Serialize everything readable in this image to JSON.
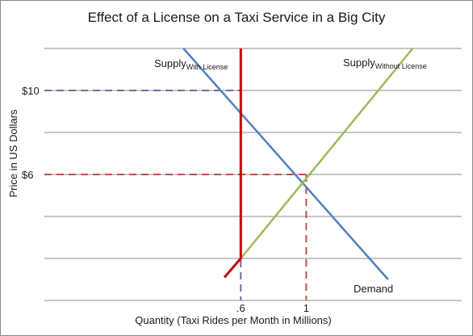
{
  "chart_data": {
    "type": "line",
    "title": "Effect of a License on a Taxi Service in  a Big City",
    "xlabel": "Quantity (Taxi Rides per Month in Millions)",
    "ylabel": "Price in US Dollars",
    "x_ticks": [
      {
        "value": 0.6,
        "label": ".6"
      },
      {
        "value": 1.0,
        "label": "1"
      }
    ],
    "y_ticks": [
      {
        "value": 10,
        "label": "$10"
      },
      {
        "value": 6,
        "label": "$6"
      }
    ],
    "xlim": [
      -0.6,
      1.95
    ],
    "ylim": [
      0,
      14
    ],
    "grid": "horizontal",
    "series": [
      {
        "name": "Demand",
        "color": "#4f81bd",
        "x": [
          0.25,
          1.5
        ],
        "y": [
          12.0,
          1.0
        ]
      },
      {
        "name": "Supply",
        "name_sub": "Without License",
        "color": "#9bbb59",
        "x": [
          0.6,
          1.65
        ],
        "y": [
          2.0,
          12.0
        ]
      },
      {
        "name": "Supply",
        "name_sub": "With License",
        "color": "#c00000",
        "x": [
          0.6,
          0.6,
          0.5
        ],
        "y": [
          12.0,
          2.0,
          1.1
        ]
      }
    ],
    "reference_lines": [
      {
        "from": [
          -0.6,
          10
        ],
        "to": [
          0.6,
          10
        ],
        "color": "#8064a2"
      },
      {
        "from": [
          0.6,
          10
        ],
        "to": [
          0.6,
          0
        ],
        "color": "#8064a2"
      },
      {
        "from": [
          -0.6,
          6
        ],
        "to": [
          1.0,
          6
        ],
        "color": "#c0504d"
      },
      {
        "from": [
          1.0,
          6
        ],
        "to": [
          1.0,
          0
        ],
        "color": "#c0504d"
      }
    ],
    "grid_values": [
      2,
      4,
      6,
      8,
      10,
      12
    ],
    "grid_color": "#8c8c8c"
  }
}
